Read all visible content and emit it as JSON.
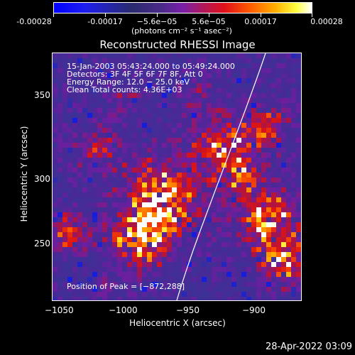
{
  "colorbar": {
    "ticks": [
      "-0.00028",
      "-0.00017",
      "−5.6e−05",
      "5.6e−05",
      "0.00017",
      "0.00028"
    ],
    "units": "(photons cm⁻² s⁻¹ asec⁻²)"
  },
  "title": "Reconstructed RHESSI Image",
  "info": {
    "line1": "15-Jan-2003 05:43:24.000 to 05:49:24.000",
    "line2": "Detectors: 3F 4F 5F 6F 7F 8F, Att 0",
    "line3": "Energy Range: 12.0 − 25.0 keV",
    "line4": "Clean      Total counts: 4.36E+03"
  },
  "peak": "Position of Peak = [−872,288]",
  "axes": {
    "xlabel": "Heliocentric X (arcsec)",
    "ylabel": "Heliocentric Y (arcsec)",
    "xticks": [
      "−1050",
      "−1000",
      "−950",
      "−900"
    ],
    "yticks": [
      "350",
      "300",
      "250"
    ]
  },
  "timestamp": "28-Apr-2022 03:09",
  "colors": {
    "background": "#000000",
    "limb": "#ffffff"
  }
}
